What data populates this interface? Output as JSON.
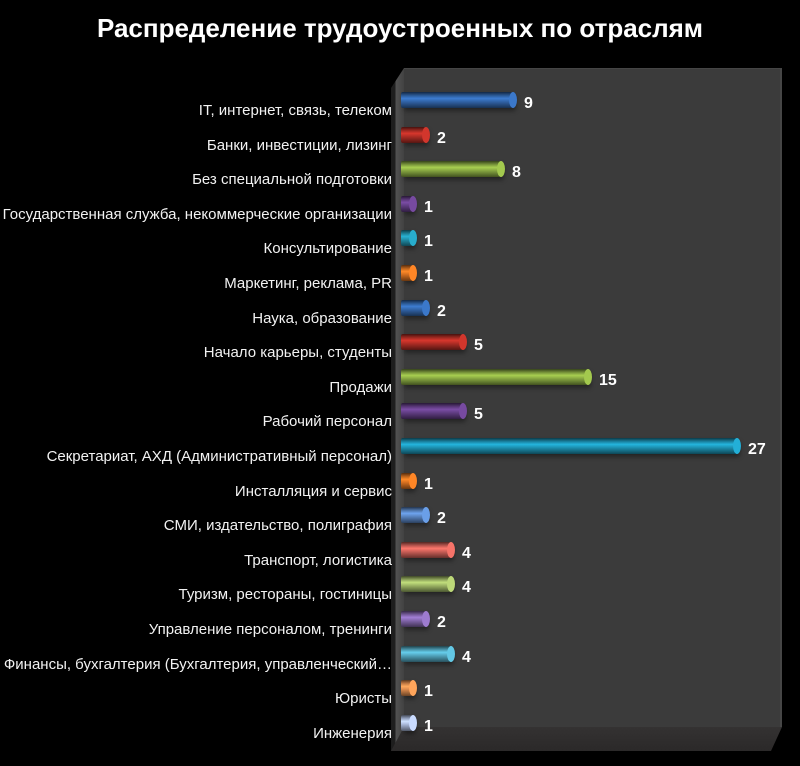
{
  "title": "Распределение трудоустроенных по отраслям",
  "chart_data": {
    "type": "bar",
    "orientation": "horizontal",
    "title": "Распределение трудоустроенных по отраслям",
    "style": "3d-cylinder",
    "legend": false,
    "grid": false,
    "xlim": [
      0,
      30
    ],
    "value_labels_shown": true,
    "background_color": "#000000",
    "wall_color": "#3b3b3b",
    "text_color": "#f2f2f2",
    "categories": [
      "IT, интернет, связь, телеком",
      "Банки, инвестиции, лизинг",
      "Без специальной подготовки",
      "Государственная служба, некоммерческие организации",
      "Консультирование",
      "Маркетинг, реклама, PR",
      "Наука, образование",
      "Начало карьеры, студенты",
      "Продажи",
      "Рабочий персонал",
      "Секретариат, АХД (Административный персонал)",
      "Инсталляция и сервис",
      "СМИ, издательство, полиграфия",
      "Транспорт, логистика",
      "Туризм, рестораны, гостиницы",
      "Управление персоналом, тренинги",
      "Финансы, бухгалтерия (Бухгалтерия, управленческий…",
      "Юристы",
      "Инженерия"
    ],
    "values": [
      9,
      2,
      8,
      1,
      1,
      1,
      2,
      5,
      15,
      5,
      27,
      1,
      2,
      4,
      4,
      2,
      4,
      1,
      1
    ],
    "bar_colors": [
      "#2e5e9e",
      "#a42a22",
      "#7f9d3d",
      "#5d3a7d",
      "#1f87a0",
      "#c8691e",
      "#2e5e9e",
      "#a42a22",
      "#7f9d3d",
      "#5d3a7d",
      "#1b89a8",
      "#c8691e",
      "#537cb5",
      "#c05a52",
      "#93a95e",
      "#7b60a2",
      "#4d9cb3",
      "#cd8147",
      "#9dabca"
    ]
  }
}
